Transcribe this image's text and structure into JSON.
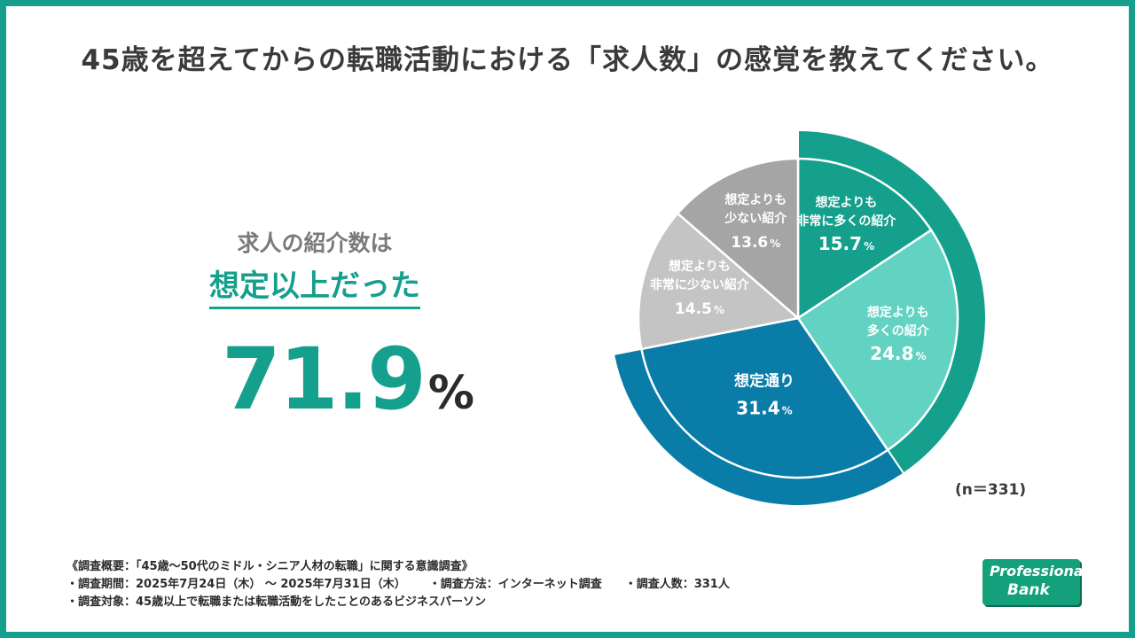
{
  "title": "45歳を超えてからの転職活動における「求人数」の感覚を教えてください。",
  "summary": {
    "line1": "求人の紹介数は",
    "line2": "想定以上だった",
    "value": "71.9",
    "unit": "%"
  },
  "sample_size": "(n＝331)",
  "colors": {
    "frame": "#14A08C",
    "much_more": "#14A08C",
    "more": "#62D3C2",
    "expected": "#0A7CA8",
    "much_less": "#C4C4C4",
    "less": "#A5A5A5"
  },
  "chart_data": {
    "type": "pie",
    "title": "",
    "unit": "%",
    "slices": [
      {
        "label_line1": "想定よりも",
        "label_line2": "非常に多くの紹介",
        "value": 15.7,
        "value_text": "15.7",
        "unit": "%"
      },
      {
        "label_line1": "想定よりも",
        "label_line2": "多くの紹介",
        "value": 24.8,
        "value_text": "24.8",
        "unit": "%"
      },
      {
        "label_line1": "想定通り",
        "label_line2": "",
        "value": 31.4,
        "value_text": "31.4",
        "unit": "%"
      },
      {
        "label_line1": "想定よりも",
        "label_line2": "非常に少ない紹介",
        "value": 14.5,
        "value_text": "14.5",
        "unit": "%"
      },
      {
        "label_line1": "想定よりも",
        "label_line2": "少ない紹介",
        "value": 13.6,
        "value_text": "13.6",
        "unit": "%"
      }
    ],
    "highlight_groups": [
      {
        "slices": [
          0,
          1
        ],
        "value": 40.5
      },
      {
        "slices": [
          2
        ],
        "value": 31.4
      }
    ]
  },
  "footer": {
    "line1": "《調査概要：「45歳～50代のミドル・シニア人材の転職」に関する意識調査》",
    "period": "・調査期間：2025年7月24日（木） ～ 2025年7月31日（木）",
    "method": "・調査方法：インターネット調査",
    "count": "・調査人数：331人",
    "target": "・調査対象：45歳以上で転職または転職活動をしたことのあるビジネスパーソン"
  },
  "logo": {
    "line1": "Professional",
    "line2": "Bank"
  }
}
